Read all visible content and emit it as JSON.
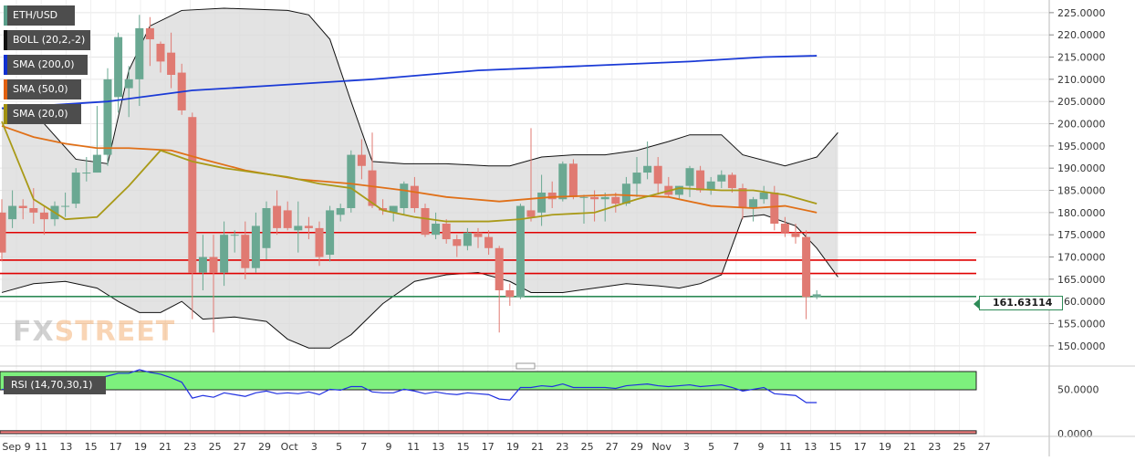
{
  "legend": [
    {
      "label": "ETH/USD",
      "color": "#5a9e8a"
    },
    {
      "label": "BOLL (20,2,-2)",
      "color": "#111111"
    },
    {
      "label": "SMA (200,0)",
      "color": "#1030d0"
    },
    {
      "label": "SMA (50,0)",
      "color": "#e06010"
    },
    {
      "label": "SMA (20,0)",
      "color": "#a09010"
    }
  ],
  "logo": {
    "part1": "FX",
    "part2": "STREET"
  },
  "last_price": "161.63114",
  "rsi_label": "RSI (14,70,30,1)",
  "colors": {
    "up": "#6aa892",
    "down": "#e07a72",
    "band_fill": "#d9d9d9",
    "sma200": "#1a3ad6",
    "sma50": "#e07018",
    "sma20": "#a99a18",
    "boll": "#111111",
    "hline_red": "#e00000",
    "hline_green": "#2e8b57",
    "rsi_line": "#2030e0",
    "rsi_ob": "#7df07d",
    "rsi_os": "#f58080"
  },
  "chart_data": [
    {
      "type": "candlestick",
      "title": "ETH/USD",
      "ylim": [
        147.5,
        226.0
      ],
      "y_ticks": [
        "150.0000",
        "155.0000",
        "160.0000",
        "165.0000",
        "170.0000",
        "175.0000",
        "180.0000",
        "185.0000",
        "190.0000",
        "195.0000",
        "200.0000",
        "205.0000",
        "210.0000",
        "215.0000",
        "220.0000",
        "225.0000"
      ],
      "x_tick_labels": [
        "Sep 9",
        "11",
        "13",
        "15",
        "17",
        "19",
        "21",
        "23",
        "25",
        "27",
        "29",
        "Oct",
        "3",
        "5",
        "7",
        "9",
        "11",
        "13",
        "15",
        "17",
        "19",
        "21",
        "23",
        "25",
        "27",
        "29",
        "Nov",
        "3",
        "5",
        "7",
        "9",
        "11",
        "13",
        "15",
        "17",
        "19",
        "21",
        "23",
        "25",
        "27"
      ],
      "candles": [
        {
          "o": 180.0,
          "h": 183.0,
          "l": 169.0,
          "c": 171.0
        },
        {
          "o": 178.5,
          "h": 185.0,
          "l": 176.5,
          "c": 181.5
        },
        {
          "o": 181.5,
          "h": 183.0,
          "l": 178.5,
          "c": 181.0
        },
        {
          "o": 181.0,
          "h": 185.5,
          "l": 177.5,
          "c": 180.0
        },
        {
          "o": 180.0,
          "h": 181.5,
          "l": 175.0,
          "c": 178.5
        },
        {
          "o": 178.5,
          "h": 182.5,
          "l": 177.0,
          "c": 181.5
        },
        {
          "o": 181.5,
          "h": 184.5,
          "l": 179.0,
          "c": 181.5
        },
        {
          "o": 182.0,
          "h": 190.0,
          "l": 181.0,
          "c": 189.0
        },
        {
          "o": 189.0,
          "h": 192.5,
          "l": 187.0,
          "c": 189.0
        },
        {
          "o": 189.0,
          "h": 204.0,
          "l": 189.0,
          "c": 193.0
        },
        {
          "o": 193.0,
          "h": 212.5,
          "l": 190.5,
          "c": 210.0
        },
        {
          "o": 206.0,
          "h": 220.5,
          "l": 202.5,
          "c": 219.5
        },
        {
          "o": 208.0,
          "h": 213.0,
          "l": 201.5,
          "c": 210.0
        },
        {
          "o": 210.0,
          "h": 224.5,
          "l": 204.0,
          "c": 221.5
        },
        {
          "o": 221.5,
          "h": 224.0,
          "l": 213.0,
          "c": 219.0
        },
        {
          "o": 218.0,
          "h": 218.5,
          "l": 211.5,
          "c": 214.0
        },
        {
          "o": 216.0,
          "h": 220.5,
          "l": 208.0,
          "c": 211.0
        },
        {
          "o": 211.5,
          "h": 213.5,
          "l": 202.0,
          "c": 203.0
        },
        {
          "o": 201.5,
          "h": 202.5,
          "l": 156.0,
          "c": 166.5
        },
        {
          "o": 166.5,
          "h": 175.0,
          "l": 162.5,
          "c": 170.0
        },
        {
          "o": 170.0,
          "h": 175.0,
          "l": 153.0,
          "c": 166.5
        },
        {
          "o": 166.5,
          "h": 178.0,
          "l": 163.5,
          "c": 175.0
        },
        {
          "o": 175.0,
          "h": 176.0,
          "l": 171.0,
          "c": 175.0
        },
        {
          "o": 175.0,
          "h": 178.0,
          "l": 165.0,
          "c": 167.5
        },
        {
          "o": 167.5,
          "h": 180.0,
          "l": 166.5,
          "c": 177.0
        },
        {
          "o": 172.0,
          "h": 182.5,
          "l": 169.5,
          "c": 181.0
        },
        {
          "o": 181.5,
          "h": 185.0,
          "l": 175.0,
          "c": 176.5
        },
        {
          "o": 180.5,
          "h": 182.5,
          "l": 176.0,
          "c": 176.5
        },
        {
          "o": 176.0,
          "h": 182.5,
          "l": 171.0,
          "c": 177.0
        },
        {
          "o": 177.0,
          "h": 179.0,
          "l": 174.0,
          "c": 176.5
        },
        {
          "o": 176.5,
          "h": 178.0,
          "l": 168.0,
          "c": 170.0
        },
        {
          "o": 170.5,
          "h": 181.5,
          "l": 169.0,
          "c": 180.5
        },
        {
          "o": 179.5,
          "h": 182.0,
          "l": 178.0,
          "c": 181.0
        },
        {
          "o": 181.0,
          "h": 194.0,
          "l": 180.0,
          "c": 193.0
        },
        {
          "o": 193.0,
          "h": 196.5,
          "l": 187.5,
          "c": 190.5
        },
        {
          "o": 189.5,
          "h": 198.0,
          "l": 181.0,
          "c": 181.5
        },
        {
          "o": 181.0,
          "h": 183.0,
          "l": 179.5,
          "c": 180.5
        },
        {
          "o": 180.0,
          "h": 181.5,
          "l": 178.0,
          "c": 181.5
        },
        {
          "o": 181.0,
          "h": 187.0,
          "l": 179.5,
          "c": 186.5
        },
        {
          "o": 186.0,
          "h": 188.0,
          "l": 180.0,
          "c": 181.0
        },
        {
          "o": 181.0,
          "h": 182.0,
          "l": 174.5,
          "c": 175.0
        },
        {
          "o": 175.0,
          "h": 180.0,
          "l": 174.0,
          "c": 177.5
        },
        {
          "o": 177.5,
          "h": 178.5,
          "l": 173.0,
          "c": 174.0
        },
        {
          "o": 174.0,
          "h": 175.0,
          "l": 170.0,
          "c": 172.5
        },
        {
          "o": 172.5,
          "h": 176.5,
          "l": 171.5,
          "c": 175.5
        },
        {
          "o": 175.5,
          "h": 176.5,
          "l": 172.0,
          "c": 174.5
        },
        {
          "o": 174.5,
          "h": 176.0,
          "l": 170.5,
          "c": 172.0
        },
        {
          "o": 172.0,
          "h": 172.5,
          "l": 153.0,
          "c": 162.5
        },
        {
          "o": 162.5,
          "h": 164.0,
          "l": 159.0,
          "c": 161.0
        },
        {
          "o": 161.0,
          "h": 182.0,
          "l": 160.5,
          "c": 181.5
        },
        {
          "o": 180.5,
          "h": 199.0,
          "l": 178.0,
          "c": 179.0
        },
        {
          "o": 180.0,
          "h": 188.5,
          "l": 177.0,
          "c": 184.5
        },
        {
          "o": 184.5,
          "h": 187.0,
          "l": 181.0,
          "c": 183.0
        },
        {
          "o": 183.0,
          "h": 191.5,
          "l": 182.5,
          "c": 191.0
        },
        {
          "o": 191.0,
          "h": 192.0,
          "l": 183.0,
          "c": 183.5
        },
        {
          "o": 183.5,
          "h": 184.0,
          "l": 177.5,
          "c": 183.5
        },
        {
          "o": 183.5,
          "h": 185.0,
          "l": 178.0,
          "c": 183.0
        },
        {
          "o": 183.0,
          "h": 184.5,
          "l": 178.0,
          "c": 183.5
        },
        {
          "o": 183.5,
          "h": 184.5,
          "l": 180.0,
          "c": 182.0
        },
        {
          "o": 182.0,
          "h": 188.0,
          "l": 181.5,
          "c": 186.5
        },
        {
          "o": 186.5,
          "h": 192.5,
          "l": 183.5,
          "c": 189.0
        },
        {
          "o": 189.0,
          "h": 196.0,
          "l": 187.5,
          "c": 190.5
        },
        {
          "o": 190.5,
          "h": 192.5,
          "l": 184.0,
          "c": 186.5
        },
        {
          "o": 186.0,
          "h": 188.0,
          "l": 183.5,
          "c": 184.0
        },
        {
          "o": 184.0,
          "h": 186.0,
          "l": 183.0,
          "c": 186.0
        },
        {
          "o": 186.0,
          "h": 190.5,
          "l": 183.5,
          "c": 190.0
        },
        {
          "o": 189.5,
          "h": 190.5,
          "l": 184.5,
          "c": 185.0
        },
        {
          "o": 185.0,
          "h": 188.0,
          "l": 184.0,
          "c": 187.0
        },
        {
          "o": 187.0,
          "h": 189.5,
          "l": 185.5,
          "c": 188.5
        },
        {
          "o": 188.5,
          "h": 189.0,
          "l": 184.5,
          "c": 185.5
        },
        {
          "o": 185.5,
          "h": 186.5,
          "l": 178.5,
          "c": 181.0
        },
        {
          "o": 181.0,
          "h": 183.5,
          "l": 178.0,
          "c": 183.0
        },
        {
          "o": 183.0,
          "h": 186.0,
          "l": 182.0,
          "c": 184.5
        },
        {
          "o": 184.5,
          "h": 186.0,
          "l": 176.0,
          "c": 177.5
        },
        {
          "o": 177.5,
          "h": 179.0,
          "l": 174.5,
          "c": 175.5
        },
        {
          "o": 175.5,
          "h": 177.5,
          "l": 173.0,
          "c": 174.5
        },
        {
          "o": 174.5,
          "h": 176.0,
          "l": 156.0,
          "c": 161.0
        },
        {
          "o": 161.0,
          "h": 162.5,
          "l": 160.5,
          "c": 161.6
        }
      ],
      "sma200": [
        {
          "i": 0,
          "v": 203.5
        },
        {
          "i": 10,
          "v": 205.0
        },
        {
          "i": 18,
          "v": 207.5
        },
        {
          "i": 25,
          "v": 208.5
        },
        {
          "i": 35,
          "v": 210.0
        },
        {
          "i": 45,
          "v": 212.0
        },
        {
          "i": 55,
          "v": 213.0
        },
        {
          "i": 65,
          "v": 214.0
        },
        {
          "i": 72,
          "v": 215.0
        },
        {
          "i": 77,
          "v": 215.3
        }
      ],
      "sma50": [
        {
          "i": 0,
          "v": 199.5
        },
        {
          "i": 3,
          "v": 197.0
        },
        {
          "i": 6,
          "v": 195.5
        },
        {
          "i": 9,
          "v": 194.5
        },
        {
          "i": 12,
          "v": 194.5
        },
        {
          "i": 16,
          "v": 194.0
        },
        {
          "i": 19,
          "v": 192.0
        },
        {
          "i": 23,
          "v": 189.5
        },
        {
          "i": 28,
          "v": 187.5
        },
        {
          "i": 33,
          "v": 186.5
        },
        {
          "i": 38,
          "v": 185.0
        },
        {
          "i": 42,
          "v": 183.5
        },
        {
          "i": 47,
          "v": 182.5
        },
        {
          "i": 52,
          "v": 183.5
        },
        {
          "i": 58,
          "v": 184.0
        },
        {
          "i": 63,
          "v": 183.5
        },
        {
          "i": 67,
          "v": 181.5
        },
        {
          "i": 71,
          "v": 181.0
        },
        {
          "i": 74,
          "v": 181.5
        },
        {
          "i": 77,
          "v": 180.0
        }
      ],
      "sma20": [
        {
          "i": 0,
          "v": 200.5
        },
        {
          "i": 3,
          "v": 183.0
        },
        {
          "i": 6,
          "v": 178.5
        },
        {
          "i": 9,
          "v": 179.0
        },
        {
          "i": 12,
          "v": 186.0
        },
        {
          "i": 15,
          "v": 194.0
        },
        {
          "i": 18,
          "v": 191.5
        },
        {
          "i": 21,
          "v": 190.0
        },
        {
          "i": 24,
          "v": 189.0
        },
        {
          "i": 27,
          "v": 188.0
        },
        {
          "i": 30,
          "v": 186.5
        },
        {
          "i": 33,
          "v": 185.5
        },
        {
          "i": 36,
          "v": 180.5
        },
        {
          "i": 39,
          "v": 179.0
        },
        {
          "i": 42,
          "v": 178.0
        },
        {
          "i": 46,
          "v": 178.0
        },
        {
          "i": 49,
          "v": 178.5
        },
        {
          "i": 52,
          "v": 179.5
        },
        {
          "i": 56,
          "v": 180.0
        },
        {
          "i": 60,
          "v": 183.0
        },
        {
          "i": 64,
          "v": 185.5
        },
        {
          "i": 68,
          "v": 185.0
        },
        {
          "i": 71,
          "v": 185.0
        },
        {
          "i": 74,
          "v": 184.0
        },
        {
          "i": 77,
          "v": 182.0
        }
      ],
      "boll_upper": [
        {
          "i": 0,
          "v": 203.5
        },
        {
          "i": 4,
          "v": 200.0
        },
        {
          "i": 7,
          "v": 192.0
        },
        {
          "i": 10,
          "v": 191.0
        },
        {
          "i": 12,
          "v": 212.0
        },
        {
          "i": 14,
          "v": 222.0
        },
        {
          "i": 17,
          "v": 225.5
        },
        {
          "i": 21,
          "v": 226.0
        },
        {
          "i": 27,
          "v": 225.5
        },
        {
          "i": 29,
          "v": 224.5
        },
        {
          "i": 31,
          "v": 219.0
        },
        {
          "i": 33,
          "v": 205.0
        },
        {
          "i": 35,
          "v": 191.5
        },
        {
          "i": 38,
          "v": 191.0
        },
        {
          "i": 42,
          "v": 191.0
        },
        {
          "i": 46,
          "v": 190.5
        },
        {
          "i": 48,
          "v": 190.5
        },
        {
          "i": 51,
          "v": 192.5
        },
        {
          "i": 54,
          "v": 193.0
        },
        {
          "i": 57,
          "v": 193.0
        },
        {
          "i": 60,
          "v": 194.0
        },
        {
          "i": 63,
          "v": 196.0
        },
        {
          "i": 65,
          "v": 197.5
        },
        {
          "i": 68,
          "v": 197.5
        },
        {
          "i": 70,
          "v": 193.0
        },
        {
          "i": 74,
          "v": 190.5
        },
        {
          "i": 77,
          "v": 192.5
        },
        {
          "i": 79,
          "v": 198.0
        }
      ],
      "boll_lower": [
        {
          "i": 0,
          "v": 162.0
        },
        {
          "i": 3,
          "v": 164.0
        },
        {
          "i": 6,
          "v": 164.5
        },
        {
          "i": 9,
          "v": 163.0
        },
        {
          "i": 11,
          "v": 160.0
        },
        {
          "i": 13,
          "v": 157.5
        },
        {
          "i": 15,
          "v": 157.5
        },
        {
          "i": 17,
          "v": 160.0
        },
        {
          "i": 19,
          "v": 156.0
        },
        {
          "i": 22,
          "v": 156.5
        },
        {
          "i": 25,
          "v": 155.5
        },
        {
          "i": 27,
          "v": 151.5
        },
        {
          "i": 29,
          "v": 149.5
        },
        {
          "i": 31,
          "v": 149.5
        },
        {
          "i": 33,
          "v": 152.5
        },
        {
          "i": 36,
          "v": 159.5
        },
        {
          "i": 39,
          "v": 164.5
        },
        {
          "i": 42,
          "v": 166.0
        },
        {
          "i": 45,
          "v": 166.5
        },
        {
          "i": 48,
          "v": 164.5
        },
        {
          "i": 50,
          "v": 162.0
        },
        {
          "i": 53,
          "v": 162.0
        },
        {
          "i": 56,
          "v": 163.0
        },
        {
          "i": 59,
          "v": 164.0
        },
        {
          "i": 62,
          "v": 163.5
        },
        {
          "i": 64,
          "v": 163.0
        },
        {
          "i": 66,
          "v": 164.0
        },
        {
          "i": 68,
          "v": 166.0
        },
        {
          "i": 70,
          "v": 179.0
        },
        {
          "i": 72,
          "v": 179.5
        },
        {
          "i": 75,
          "v": 177.0
        },
        {
          "i": 77,
          "v": 172.0
        },
        {
          "i": 79,
          "v": 165.5
        }
      ],
      "horizontal_lines": [
        {
          "value": 175.5,
          "color": "red"
        },
        {
          "value": 169.3,
          "color": "red"
        },
        {
          "value": 166.3,
          "color": "red"
        },
        {
          "value": 161.1,
          "color": "green"
        }
      ],
      "grid": true
    },
    {
      "type": "line",
      "title": "RSI (14,70,30,1)",
      "ylim": [
        0,
        70
      ],
      "y_ticks": [
        "0.0000",
        "50.0000"
      ],
      "overbought": 70,
      "oversold": 30,
      "series": [
        {
          "values": [
            50,
            49,
            52,
            55,
            53,
            54,
            55,
            58,
            60,
            62,
            65,
            68,
            68,
            72,
            69,
            67,
            63,
            58,
            40,
            43,
            41,
            46,
            44,
            42,
            46,
            48,
            45,
            46,
            45,
            47,
            44,
            50,
            49,
            53,
            53,
            47,
            46,
            46,
            50,
            48,
            45,
            47,
            45,
            44,
            46,
            45,
            44,
            39,
            38,
            52,
            52,
            54,
            53,
            56,
            52,
            52,
            52,
            52,
            51,
            54,
            55,
            56,
            54,
            53,
            54,
            55,
            53,
            54,
            55,
            52,
            48,
            50,
            52,
            45,
            44,
            43,
            35,
            35
          ]
        }
      ]
    }
  ]
}
